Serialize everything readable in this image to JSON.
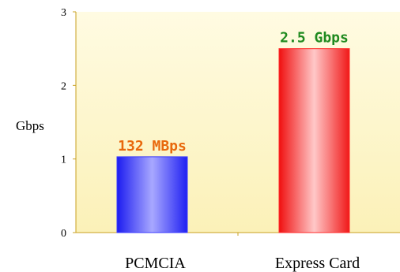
{
  "chart_data": {
    "type": "bar",
    "title": "",
    "xlabel": "",
    "ylabel": "Gbps",
    "ylim": [
      0,
      3
    ],
    "yticks": [
      "0",
      "1",
      "2",
      "3"
    ],
    "categories": [
      "PCMCIA",
      "Express Card"
    ],
    "values": [
      1.03,
      2.5
    ],
    "data_labels": [
      "132 MBps",
      "2.5 Gbps"
    ],
    "bar_colors": [
      "#3a3aff",
      "#ff2a2a"
    ],
    "label_colors": [
      "#e8680c",
      "#1f8a1f"
    ],
    "plot_background": "#fdf6c8",
    "grid": false,
    "legend": "none"
  }
}
